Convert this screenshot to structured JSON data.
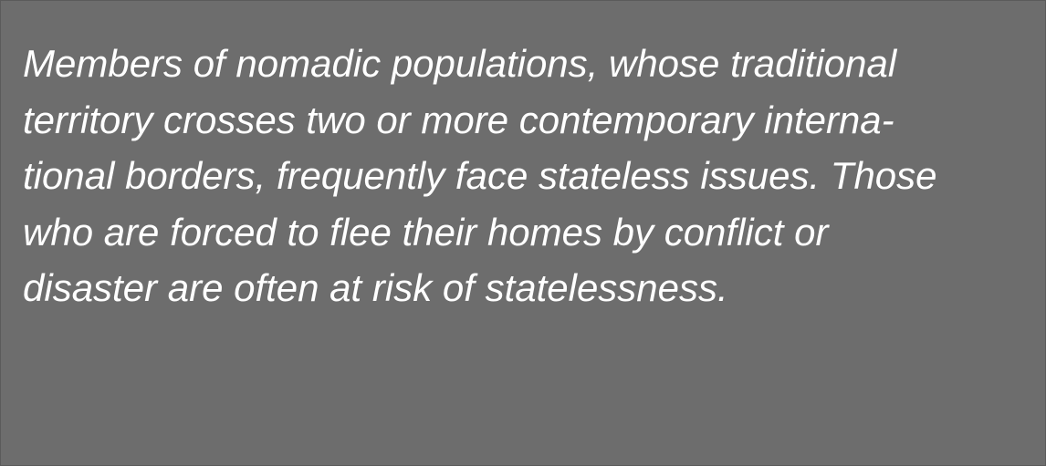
{
  "paragraph": {
    "lines": [
      "Members of nomadic populations, whose traditional",
      "territory crosses two or more contemporary interna-",
      "tional borders, frequently face stateless issues. Those",
      "who are forced to flee their homes by conflict or",
      "disaster are often at risk of statelessness."
    ]
  },
  "colors": {
    "background": "#6d6d6d",
    "text": "#ffffff"
  }
}
